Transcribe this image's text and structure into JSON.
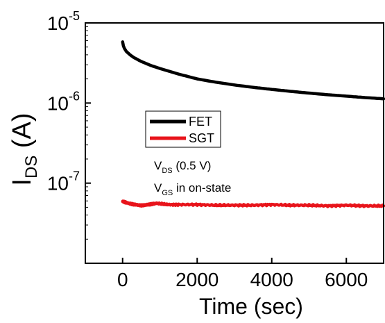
{
  "chart_data": {
    "type": "line",
    "xlabel": "Time (sec)",
    "ylabel": {
      "main": "I",
      "sub": "DS",
      "unit": " (A)"
    },
    "x_ticks": [
      0,
      2000,
      4000,
      6000
    ],
    "xlim": [
      -1000,
      7000
    ],
    "y_scale": "log",
    "ylim": [
      1e-08,
      1e-05
    ],
    "y_ticks": [
      {
        "value": 1e-07,
        "base": "10",
        "exp": "-7"
      },
      {
        "value": 1e-06,
        "base": "10",
        "exp": "-6"
      },
      {
        "value": 1e-05,
        "base": "10",
        "exp": "-5"
      }
    ],
    "legend": {
      "placement": "upper-left, inside"
    },
    "series": [
      {
        "name": "FET",
        "color": "#000000",
        "x": [
          0,
          20,
          50,
          100,
          200,
          300,
          500,
          750,
          1000,
          1500,
          2000,
          2500,
          3000,
          3500,
          4000,
          4500,
          5000,
          5500,
          6000,
          6500,
          7000
        ],
        "y": [
          5.8e-06,
          5.2e-06,
          4.8e-06,
          4.4e-06,
          4e-06,
          3.7e-06,
          3.3e-06,
          2.95e-06,
          2.7e-06,
          2.3e-06,
          2e-06,
          1.82e-06,
          1.68e-06,
          1.57e-06,
          1.48e-06,
          1.4e-06,
          1.33e-06,
          1.27e-06,
          1.22e-06,
          1.17e-06,
          1.13e-06
        ]
      },
      {
        "name": "SGT",
        "color": "#e8141b",
        "x": [
          0,
          100,
          300,
          500,
          700,
          900,
          1200,
          1500,
          2000,
          2500,
          3000,
          3500,
          4000,
          4500,
          5000,
          5500,
          6000,
          6500,
          7000
        ],
        "y": [
          5.9e-08,
          5.7e-08,
          5.4e-08,
          5.3e-08,
          5.4e-08,
          5.6e-08,
          5.4e-08,
          5.4e-08,
          5.4e-08,
          5.3e-08,
          5.3e-08,
          5.3e-08,
          5.4e-08,
          5.3e-08,
          5.3e-08,
          5.2e-08,
          5.3e-08,
          5.2e-08,
          5.2e-08
        ]
      }
    ],
    "annotations": [
      {
        "main": "V",
        "sub": "DS",
        "rest": " (0.5 V)"
      },
      {
        "main": "V",
        "sub": "GS",
        "rest": " in on-state"
      }
    ]
  }
}
